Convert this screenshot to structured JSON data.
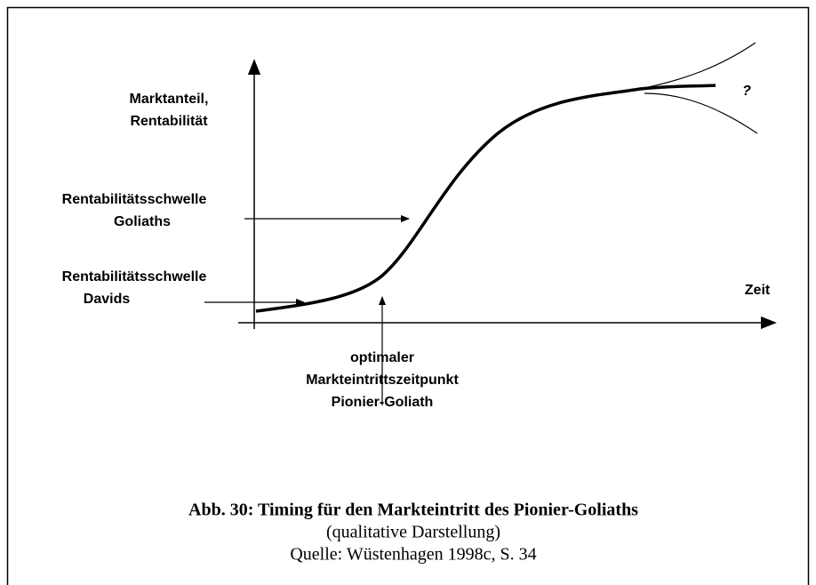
{
  "diagram": {
    "y_axis_label": [
      "Marktanteil,",
      "Rentabilität"
    ],
    "x_axis_label": "Zeit",
    "threshold_goliath": [
      "Rentabilitätsschwelle",
      "Goliaths"
    ],
    "threshold_david": [
      "Rentabilitätsschwelle",
      "Davids"
    ],
    "entry_point": [
      "optimaler",
      "Markteintrittszeitpunkt",
      "Pionier-Goliath"
    ],
    "uncertainty": "?"
  },
  "caption": {
    "title": "Abb. 30: Timing für den Markteintritt des Pionier-Goliaths",
    "subtitle": "(qualitative Darstellung)",
    "source": "Quelle: Wüstenhagen 1998c, S. 34"
  }
}
